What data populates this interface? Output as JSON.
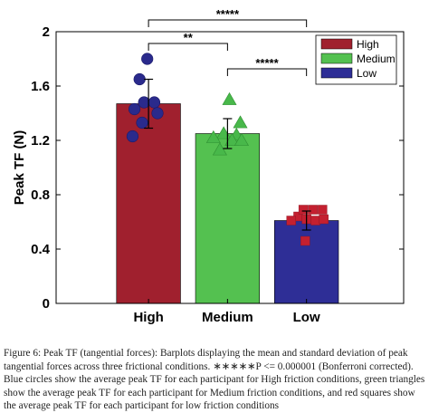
{
  "chart_data": {
    "type": "bar",
    "ylabel": "Peak TF (N)",
    "ylim": [
      0,
      2
    ],
    "yticks": [
      "0",
      "0.4",
      "0.8",
      "1.2",
      "1.6",
      "2"
    ],
    "categories": [
      "High",
      "Medium",
      "Low"
    ],
    "values": [
      1.47,
      1.25,
      0.61
    ],
    "error": [
      0.18,
      0.11,
      0.07
    ],
    "colors": [
      "#a0202e",
      "#54c150",
      "#2e2e96"
    ],
    "point_colors": [
      "#2a2a8c",
      "#48b84a",
      "#c42030"
    ],
    "points": [
      [
        [
          -0.02,
          1.8
        ],
        [
          -0.14,
          1.65
        ],
        [
          -0.22,
          1.43
        ],
        [
          -0.07,
          1.48
        ],
        [
          0.09,
          1.48
        ],
        [
          0.14,
          1.4
        ],
        [
          -0.1,
          1.33
        ],
        [
          -0.25,
          1.23
        ]
      ],
      [
        [
          -0.06,
          1.25
        ],
        [
          0.03,
          1.5
        ],
        [
          0.2,
          1.33
        ],
        [
          0.14,
          1.24
        ],
        [
          -0.22,
          1.22
        ],
        [
          0.07,
          1.2
        ],
        [
          -0.12,
          1.13
        ],
        [
          0.22,
          1.2
        ]
      ],
      [
        [
          -0.13,
          0.64
        ],
        [
          -0.05,
          0.69
        ],
        [
          0.1,
          0.69
        ],
        [
          0.25,
          0.69
        ],
        [
          -0.24,
          0.61
        ],
        [
          0.0,
          0.62
        ],
        [
          0.14,
          0.61
        ],
        [
          0.27,
          0.62
        ],
        [
          -0.02,
          0.46
        ]
      ]
    ],
    "legend": [
      "High",
      "Medium",
      "Low"
    ],
    "legend_placement": "top-right",
    "significance": [
      {
        "from": 0,
        "to": 1,
        "label": "**"
      },
      {
        "from": 1,
        "to": 2,
        "label": "*****"
      },
      {
        "from": 0,
        "to": 2,
        "label": "*****"
      }
    ],
    "caption": "Figure 6:    Peak TF (tangential forces): Barplots displaying the mean and standard deviation of peak tangential forces across three frictional conditions. ∗∗∗∗∗P <= 0.000001 (Bonferroni corrected). Blue circles show the average peak TF for each participant for High friction conditions, green triangles show the average peak TF for each participant for Medium friction conditions, and red squares show the average peak TF for each participant for low friction conditions"
  }
}
